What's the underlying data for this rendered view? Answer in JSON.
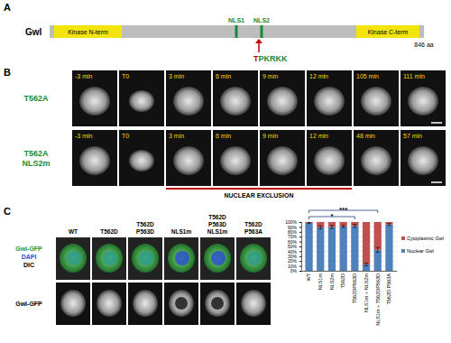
{
  "panel_labels": [
    "A",
    "B",
    "C"
  ],
  "domain_diagram": {
    "protein": "Gwl",
    "domains": [
      "Kinase N-term",
      "Kinase C-term"
    ],
    "motifs": [
      "NLS1",
      "NLS2"
    ],
    "length_label": "846 aa",
    "site_residue": "T",
    "site_motif": "PKRKK"
  },
  "time_lapse": {
    "rows": [
      {
        "label": [
          "T562A"
        ],
        "times": [
          "-3 min",
          "T0",
          "3 min",
          "6 min",
          "9 min",
          "12 min",
          "105 min",
          "111 min"
        ]
      },
      {
        "label": [
          "T562A",
          "NLS2m"
        ],
        "times": [
          "-3 min",
          "T0",
          "3 min",
          "6 min",
          "9 min",
          "12 min",
          "48 min",
          "57 min"
        ]
      }
    ],
    "annotation": "NUCLEAR EXCLUSION"
  },
  "micrographs": {
    "channel_labels": [
      "Gwl-GFP",
      "DAPI",
      "DIC"
    ],
    "row2_label": "Gwl-GFP",
    "columns": [
      [
        "WT"
      ],
      [
        "T562D"
      ],
      [
        "T562D",
        "P563D"
      ],
      [
        "NLS1m"
      ],
      [
        "T562D",
        "P563D",
        "NLS1m"
      ],
      [
        "T562D",
        "P563A"
      ]
    ]
  },
  "chart_data": {
    "type": "bar",
    "stacked": true,
    "categories": [
      "WT",
      "NLS1m",
      "NLS2m",
      "T562D",
      "T562DP563D",
      "NLS1m + NLS2m",
      "NLS1m + T562DP563D",
      "T562D P563A"
    ],
    "series": [
      {
        "name": "Nuclear Gwl",
        "color": "#4f81bd",
        "values": [
          98,
          89,
          90,
          91,
          92,
          13,
          43,
          95
        ],
        "errors": [
          1,
          3,
          3,
          2,
          3,
          3,
          5,
          2
        ]
      },
      {
        "name": "Cytoplasmic Gwl",
        "color": "#c0504d",
        "values": [
          2,
          11,
          10,
          9,
          8,
          87,
          57,
          5
        ]
      }
    ],
    "ylim": [
      0,
      100
    ],
    "yticks": [
      {
        "value": 0,
        "label": "0%"
      },
      {
        "value": 10,
        "label": "10%"
      },
      {
        "value": 20,
        "label": "20%"
      },
      {
        "value": 30,
        "label": "30%"
      },
      {
        "value": 40,
        "label": "40%"
      },
      {
        "value": 50,
        "label": "50%"
      },
      {
        "value": 60,
        "label": "60%"
      },
      {
        "value": 70,
        "label": "70%"
      },
      {
        "value": 80,
        "label": "80%"
      },
      {
        "value": 90,
        "label": "90%"
      },
      {
        "value": 100,
        "label": "100%"
      }
    ],
    "grid": true,
    "legend": "right",
    "annotations": [
      {
        "text": "*",
        "from": "WT",
        "to": "T562DP563D"
      },
      {
        "text": "***",
        "from": "WT",
        "to": "NLS1m + T562DP563D"
      }
    ]
  }
}
